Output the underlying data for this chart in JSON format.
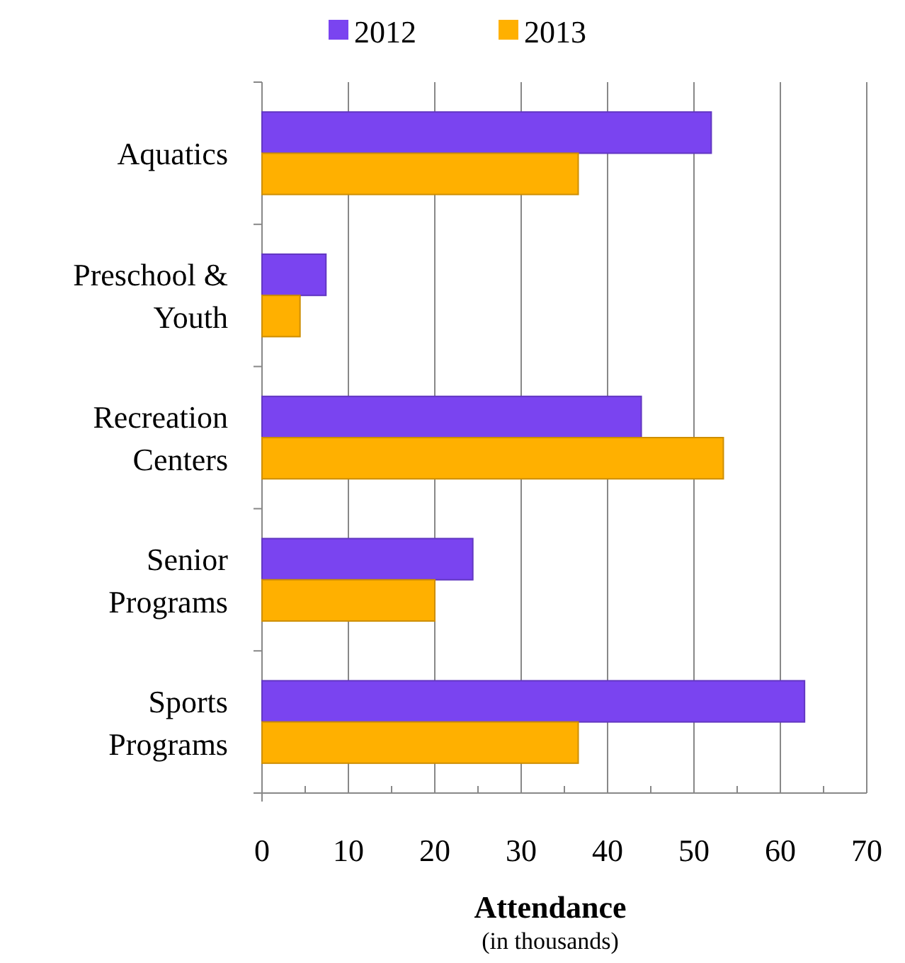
{
  "chart_data": {
    "type": "bar",
    "orientation": "horizontal",
    "categories": [
      "Aquatics",
      "Preschool & Youth",
      "Recreation Centers",
      "Senior Programs",
      "Sports Programs"
    ],
    "series": [
      {
        "name": "2012",
        "color": "#7a44f0",
        "values": [
          52,
          7.4,
          43.9,
          24.4,
          62.8
        ]
      },
      {
        "name": "2013",
        "color": "#ffb000",
        "values": [
          36.6,
          4.4,
          53.4,
          20,
          36.6
        ]
      }
    ],
    "xlim": [
      0,
      70
    ],
    "xticks": [
      0,
      10,
      20,
      30,
      40,
      50,
      60,
      70
    ],
    "grid": "x",
    "legend": "top",
    "xlabel": "Attendance",
    "annotations": [
      "(in thousands)"
    ]
  }
}
